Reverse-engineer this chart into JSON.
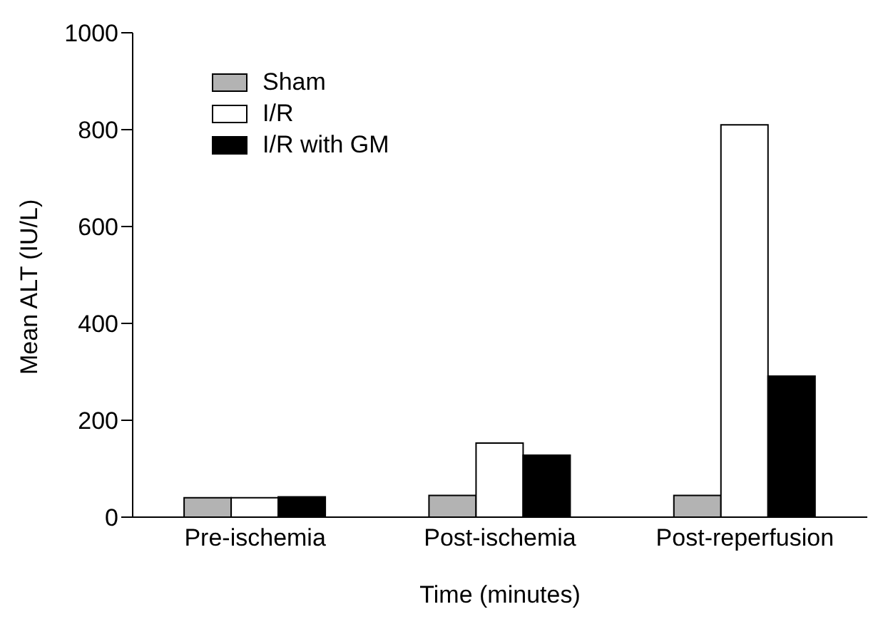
{
  "chart_data": {
    "type": "bar",
    "xlabel": "Time (minutes)",
    "ylabel": "Mean ALT (IU/L)",
    "categories": [
      "Pre-ischemia",
      "Post-ischemia",
      "Post-reperfusion"
    ],
    "series": [
      {
        "name": "Sham",
        "color": "#b3b3b3",
        "values": [
          40,
          45,
          45
        ]
      },
      {
        "name": "I/R",
        "color": "#ffffff",
        "values": [
          40,
          153,
          810
        ]
      },
      {
        "name": "I/R with GM",
        "color": "#000000",
        "values": [
          42,
          128,
          291
        ]
      }
    ],
    "ylim": [
      0,
      1000
    ],
    "yticks": [
      0,
      200,
      400,
      600,
      800,
      1000
    ],
    "grid": false,
    "legend": "top left"
  }
}
